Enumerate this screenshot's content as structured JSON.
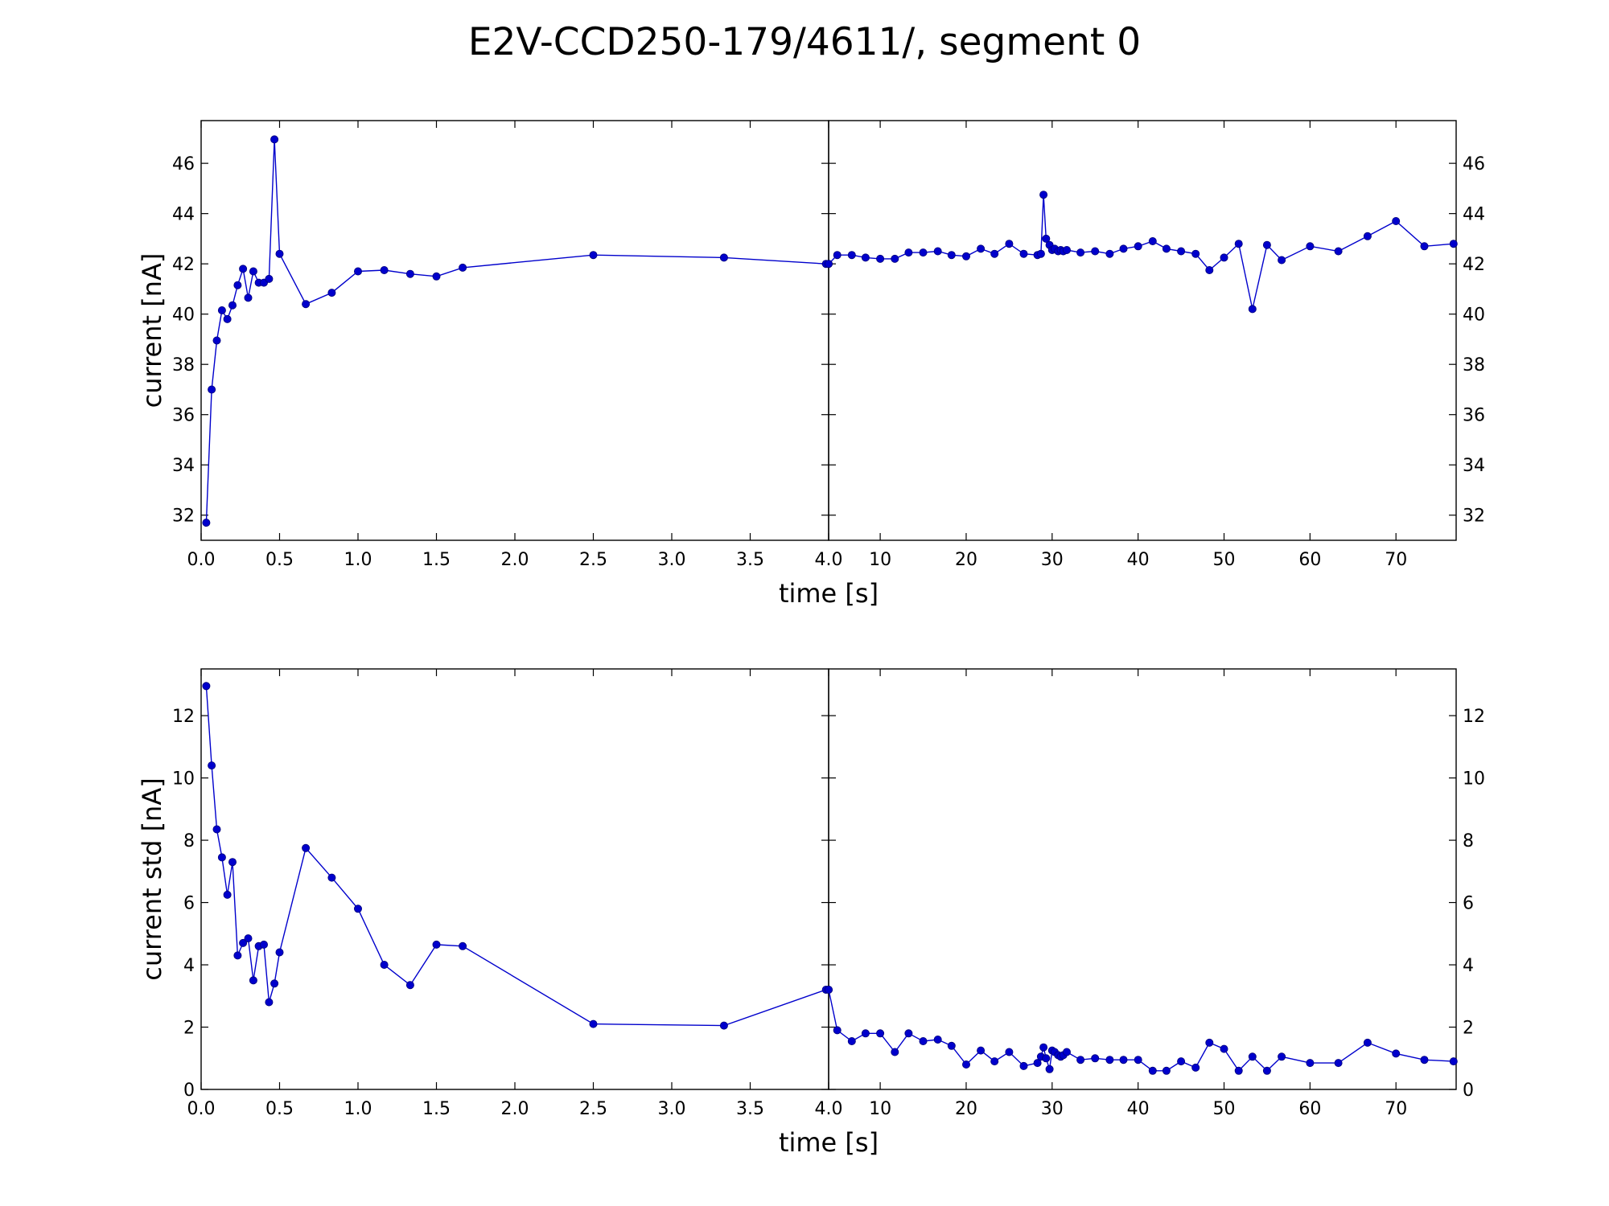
{
  "figure": {
    "title": "E2V-CCD250-179/4611/, segment 0"
  },
  "chart_data": [
    {
      "type": "line",
      "panel": "left",
      "xlabel": "time [s]",
      "ylabel": "current [nA]",
      "xlim": [
        0,
        4.0
      ],
      "ylim": [
        31,
        47.7
      ],
      "xticks": [
        "0.0",
        "0.5",
        "1.0",
        "1.5",
        "2.0",
        "2.5",
        "3.0",
        "3.5",
        "4.0"
      ],
      "xtick_values": [
        0,
        0.5,
        1.0,
        1.5,
        2.0,
        2.5,
        3.0,
        3.5,
        4.0
      ],
      "yticks": [
        "32",
        "34",
        "36",
        "38",
        "40",
        "42",
        "44",
        "46"
      ],
      "ytick_values": [
        32,
        34,
        36,
        38,
        40,
        42,
        44,
        46
      ],
      "series": [
        {
          "color": "#0000cc",
          "x": [
            0.033,
            0.067,
            0.1,
            0.133,
            0.167,
            0.2,
            0.233,
            0.267,
            0.3,
            0.333,
            0.367,
            0.4,
            0.433,
            0.467,
            0.5,
            0.667,
            0.833,
            1.0,
            1.167,
            1.333,
            1.5,
            1.667,
            2.5,
            3.333,
            3.983,
            4.0
          ],
          "y": [
            31.7,
            37.0,
            38.95,
            40.15,
            39.8,
            40.35,
            41.15,
            41.8,
            40.65,
            41.7,
            41.25,
            41.25,
            41.4,
            46.95,
            42.4,
            40.4,
            40.85,
            41.7,
            41.75,
            41.6,
            41.5,
            41.85,
            42.35,
            42.25,
            42.0,
            42.0
          ]
        }
      ]
    },
    {
      "type": "line",
      "panel": "right",
      "xlabel": "",
      "ylabel": "",
      "xlim": [
        4.0,
        77.0
      ],
      "ylim": [
        31,
        47.7
      ],
      "xticks": [
        "10",
        "20",
        "30",
        "40",
        "50",
        "60",
        "70"
      ],
      "xtick_values": [
        10,
        20,
        30,
        40,
        50,
        60,
        70
      ],
      "yticks": [
        "32",
        "34",
        "36",
        "38",
        "40",
        "42",
        "44",
        "46"
      ],
      "ytick_values": [
        32,
        34,
        36,
        38,
        40,
        42,
        44,
        46
      ],
      "series": [
        {
          "color": "#0000cc",
          "x": [
            4.0,
            5.0,
            6.7,
            8.3,
            10.0,
            11.7,
            13.3,
            15.0,
            16.7,
            18.3,
            20.0,
            21.7,
            23.3,
            25.0,
            26.7,
            28.3,
            28.7,
            29.0,
            29.3,
            29.7,
            30.0,
            30.3,
            30.7,
            31.0,
            31.3,
            31.7,
            33.3,
            35.0,
            36.7,
            38.3,
            40.0,
            41.7,
            43.3,
            45.0,
            46.7,
            48.3,
            50.0,
            51.7,
            53.3,
            55.0,
            56.7,
            60.0,
            63.3,
            66.7,
            70.0,
            73.3,
            76.7
          ],
          "y": [
            42.0,
            42.35,
            42.35,
            42.25,
            42.2,
            42.2,
            42.45,
            42.45,
            42.5,
            42.35,
            42.3,
            42.6,
            42.4,
            42.8,
            42.4,
            42.35,
            42.4,
            44.75,
            43.0,
            42.75,
            42.55,
            42.6,
            42.5,
            42.55,
            42.5,
            42.55,
            42.45,
            42.5,
            42.4,
            42.6,
            42.7,
            42.9,
            42.6,
            42.5,
            42.4,
            41.75,
            42.25,
            42.8,
            40.2,
            42.75,
            42.15,
            42.7,
            42.5,
            43.1,
            43.7,
            42.7,
            42.8
          ]
        }
      ]
    },
    {
      "type": "line",
      "panel": "left",
      "xlabel": "time [s]",
      "ylabel": "current std [nA]",
      "xlim": [
        0,
        4.0
      ],
      "ylim": [
        0,
        13.5
      ],
      "xticks": [
        "0.0",
        "0.5",
        "1.0",
        "1.5",
        "2.0",
        "2.5",
        "3.0",
        "3.5",
        "4.0"
      ],
      "xtick_values": [
        0,
        0.5,
        1.0,
        1.5,
        2.0,
        2.5,
        3.0,
        3.5,
        4.0
      ],
      "yticks": [
        "0",
        "2",
        "4",
        "6",
        "8",
        "10",
        "12"
      ],
      "ytick_values": [
        0,
        2,
        4,
        6,
        8,
        10,
        12
      ],
      "series": [
        {
          "color": "#0000cc",
          "x": [
            0.033,
            0.067,
            0.1,
            0.133,
            0.167,
            0.2,
            0.233,
            0.267,
            0.3,
            0.333,
            0.367,
            0.4,
            0.433,
            0.467,
            0.5,
            0.667,
            0.833,
            1.0,
            1.167,
            1.333,
            1.5,
            1.667,
            2.5,
            3.333,
            3.983,
            4.0
          ],
          "y": [
            12.95,
            10.4,
            8.35,
            7.45,
            6.25,
            7.3,
            4.3,
            4.7,
            4.85,
            3.5,
            4.6,
            4.65,
            2.8,
            3.4,
            4.4,
            7.75,
            6.8,
            5.8,
            4.0,
            3.35,
            4.65,
            4.6,
            2.1,
            2.05,
            3.2,
            3.2
          ]
        }
      ]
    },
    {
      "type": "line",
      "panel": "right",
      "xlabel": "",
      "ylabel": "",
      "xlim": [
        4.0,
        77.0
      ],
      "ylim": [
        0,
        13.5
      ],
      "xticks": [
        "10",
        "20",
        "30",
        "40",
        "50",
        "60",
        "70"
      ],
      "xtick_values": [
        10,
        20,
        30,
        40,
        50,
        60,
        70
      ],
      "yticks": [
        "0",
        "2",
        "4",
        "6",
        "8",
        "10",
        "12"
      ],
      "ytick_values": [
        0,
        2,
        4,
        6,
        8,
        10,
        12
      ],
      "series": [
        {
          "color": "#0000cc",
          "x": [
            4.0,
            5.0,
            6.7,
            8.3,
            10.0,
            11.7,
            13.3,
            15.0,
            16.7,
            18.3,
            20.0,
            21.7,
            23.3,
            25.0,
            26.7,
            28.3,
            28.7,
            29.0,
            29.3,
            29.7,
            30.0,
            30.3,
            30.7,
            31.0,
            31.3,
            31.7,
            33.3,
            35.0,
            36.7,
            38.3,
            40.0,
            41.7,
            43.3,
            45.0,
            46.7,
            48.3,
            50.0,
            51.7,
            53.3,
            55.0,
            56.7,
            60.0,
            63.3,
            66.7,
            70.0,
            73.3,
            76.7
          ],
          "y": [
            3.2,
            1.9,
            1.55,
            1.8,
            1.8,
            1.2,
            1.8,
            1.55,
            1.6,
            1.4,
            0.8,
            1.25,
            0.9,
            1.2,
            0.75,
            0.85,
            1.05,
            1.35,
            1.0,
            0.65,
            1.25,
            1.2,
            1.1,
            1.05,
            1.1,
            1.2,
            0.95,
            1.0,
            0.95,
            0.95,
            0.95,
            0.6,
            0.6,
            0.9,
            0.7,
            1.5,
            1.3,
            0.6,
            1.05,
            0.6,
            1.05,
            0.85,
            0.85,
            1.5,
            1.15,
            0.95,
            0.9
          ]
        }
      ]
    }
  ]
}
